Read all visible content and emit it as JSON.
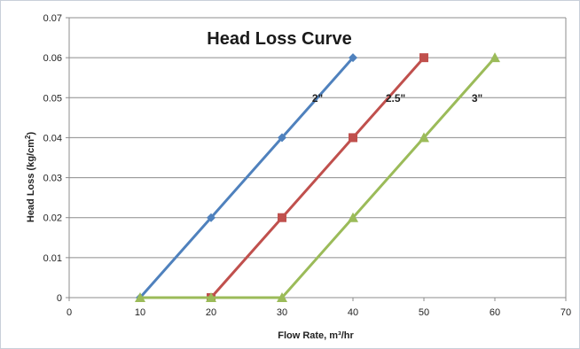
{
  "chart_data": {
    "type": "line",
    "title": "Head Loss Curve",
    "xlabel": "Flow Rate, m³/hr",
    "ylabel_main": "Head Loss (kg/cm",
    "ylabel_sup": "2",
    "ylabel_end": ")",
    "xlim": [
      0,
      70
    ],
    "ylim": [
      0,
      0.07
    ],
    "x_ticks": [
      0,
      10,
      20,
      30,
      40,
      50,
      60,
      70
    ],
    "y_ticks": [
      0,
      0.01,
      0.02,
      0.03,
      0.04,
      0.05,
      0.06,
      0.07
    ],
    "y_tick_labels": [
      "0",
      "0.01",
      "0.02",
      "0.03",
      "0.04",
      "0.05",
      "0.06",
      "0.07"
    ],
    "grid": "horizontal",
    "series": [
      {
        "name": "2\"",
        "color": "#4f81bd",
        "marker": "diamond",
        "points": [
          [
            10,
            0
          ],
          [
            20,
            0.02
          ],
          [
            30,
            0.04
          ],
          [
            40,
            0.06
          ]
        ]
      },
      {
        "name": "2.5\"",
        "color": "#c0504d",
        "marker": "square",
        "points": [
          [
            20,
            0
          ],
          [
            30,
            0.02
          ],
          [
            40,
            0.04
          ],
          [
            50,
            0.06
          ]
        ]
      },
      {
        "name": "3\"",
        "color": "#9bbb59",
        "marker": "triangle",
        "points": [
          [
            10,
            0
          ],
          [
            20,
            0
          ],
          [
            30,
            0
          ],
          [
            40,
            0.02
          ],
          [
            50,
            0.04
          ],
          [
            60,
            0.06
          ]
        ]
      }
    ]
  }
}
